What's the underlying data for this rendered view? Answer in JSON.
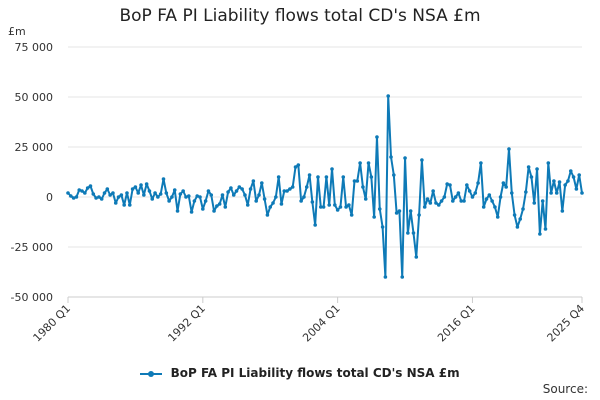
{
  "chart_data": {
    "type": "line",
    "title": "BoP FA PI Liability flows total CD's NSA £m",
    "unit_label": "£m",
    "ylim": [
      -50000,
      75000
    ],
    "y_ticks": [
      -50000,
      -25000,
      0,
      25000,
      50000,
      75000
    ],
    "y_tick_labels": [
      "-50 000",
      "-25 000",
      "0",
      "25 000",
      "50 000",
      "75 000"
    ],
    "x_tick_labels": [
      "1980 Q1",
      "1992 Q1",
      "2004 Q1",
      "2016 Q1",
      "2025 Q4"
    ],
    "x_tick_index": [
      0,
      48,
      96,
      144,
      183
    ],
    "series": [
      {
        "name": "BoP FA PI Liability flows total CD's NSA £m",
        "color": "#0e7ab7",
        "start": "1980 Q1",
        "end": "2025 Q4",
        "values": [
          2000,
          500,
          -500,
          0,
          3500,
          3000,
          2000,
          4500,
          5500,
          1500,
          -500,
          0,
          -1000,
          2000,
          4000,
          1000,
          2000,
          -3000,
          0,
          1000,
          -4000,
          2000,
          -4000,
          4000,
          5000,
          2000,
          6000,
          1000,
          6500,
          3000,
          -1000,
          2000,
          0,
          1500,
          9000,
          2000,
          -2000,
          0,
          3500,
          -7000,
          1500,
          3000,
          0,
          500,
          -7500,
          -2000,
          500,
          0,
          -6000,
          -2000,
          3000,
          1000,
          -7000,
          -4500,
          -3500,
          1000,
          -5000,
          2500,
          4500,
          1000,
          3000,
          5000,
          4000,
          1000,
          -4000,
          4000,
          8000,
          -2000,
          1000,
          7000,
          -1000,
          -9000,
          -5000,
          -3000,
          0,
          10000,
          -3500,
          3000,
          3000,
          4000,
          5000,
          15000,
          16000,
          -2000,
          0,
          5000,
          11000,
          -2500,
          -14000,
          10000,
          -5000,
          -5000,
          10000,
          -4000,
          14000,
          -4000,
          -6500,
          -5000,
          10000,
          -5000,
          -4000,
          -9000,
          8000,
          8000,
          17000,
          5000,
          -1000,
          17000,
          10000,
          -10000,
          30000,
          -6000,
          -15000,
          -40000,
          50500,
          20000,
          11000,
          -8000,
          -7000,
          -40000,
          19500,
          -18000,
          -7000,
          -18000,
          -30000,
          -9000,
          18500,
          -5000,
          -1000,
          -3000,
          3000,
          -3000,
          -4000,
          -2000,
          0,
          6500,
          6000,
          -2000,
          0,
          2000,
          -2000,
          -2000,
          6000,
          3000,
          0,
          2000,
          7000,
          17000,
          -5000,
          -1000,
          1000,
          -2000,
          -5000,
          -10000,
          0,
          7000,
          5000,
          24000,
          2000,
          -9000,
          -15000,
          -11000,
          -6000,
          2500,
          15000,
          10000,
          -3000,
          14000,
          -18500,
          -2000,
          -16000,
          17000,
          2000,
          8000,
          2000,
          7500,
          -7000,
          6000,
          8000,
          13000,
          10000,
          4000,
          11000,
          2000
        ]
      }
    ]
  },
  "legend_label": "BoP FA PI Liability flows total CD's NSA £m",
  "source_label": "Source:"
}
